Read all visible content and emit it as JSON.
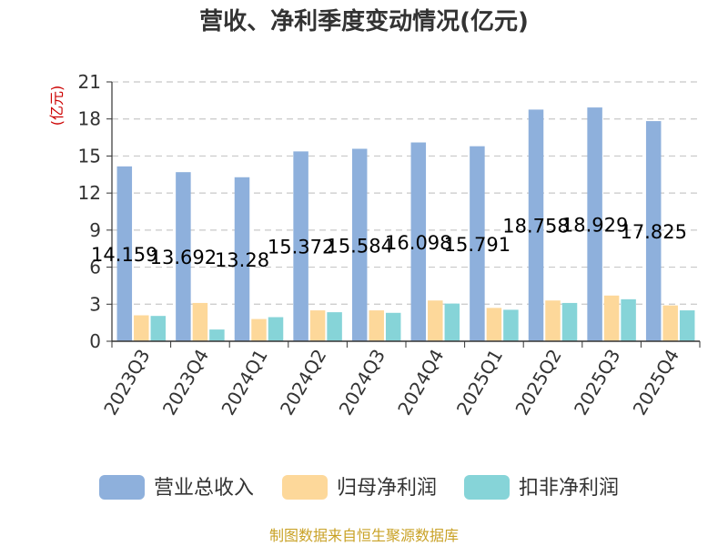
{
  "chart_data": {
    "type": "bar",
    "title": "营收、净利季度变动情况(亿元)",
    "ylabel": "(亿元)",
    "xlabel": "",
    "ylim": [
      0,
      21
    ],
    "yticks": [
      0,
      3,
      6,
      9,
      12,
      15,
      18,
      21
    ],
    "grid": true,
    "legend_position": "bottom",
    "categories": [
      "2023Q3",
      "2023Q4",
      "2024Q1",
      "2024Q2",
      "2024Q3",
      "2024Q4",
      "2025Q1",
      "2025Q2",
      "2025Q3",
      "2025Q4"
    ],
    "series": [
      {
        "name": "营业总收入",
        "color": "#8eb0dc",
        "values": [
          14.159,
          13.692,
          13.28,
          15.372,
          15.584,
          16.098,
          15.791,
          18.758,
          18.929,
          17.825
        ]
      },
      {
        "name": "归母净利润",
        "color": "#fdd89a",
        "values": [
          2.1,
          3.1,
          1.8,
          2.5,
          2.5,
          3.3,
          2.7,
          3.3,
          3.7,
          2.9
        ]
      },
      {
        "name": "扣非净利润",
        "color": "#86d4d8",
        "values": [
          2.05,
          0.95,
          1.95,
          2.35,
          2.3,
          3.05,
          2.55,
          3.1,
          3.4,
          2.5
        ]
      }
    ],
    "data_labels": [
      "14.159",
      "13.692",
      "13.28",
      "15.372",
      "15.584",
      "16.098",
      "15.791",
      "18.758",
      "18.929",
      "17.825"
    ]
  },
  "footer": {
    "source": "制图数据来自恒生聚源数据库"
  }
}
